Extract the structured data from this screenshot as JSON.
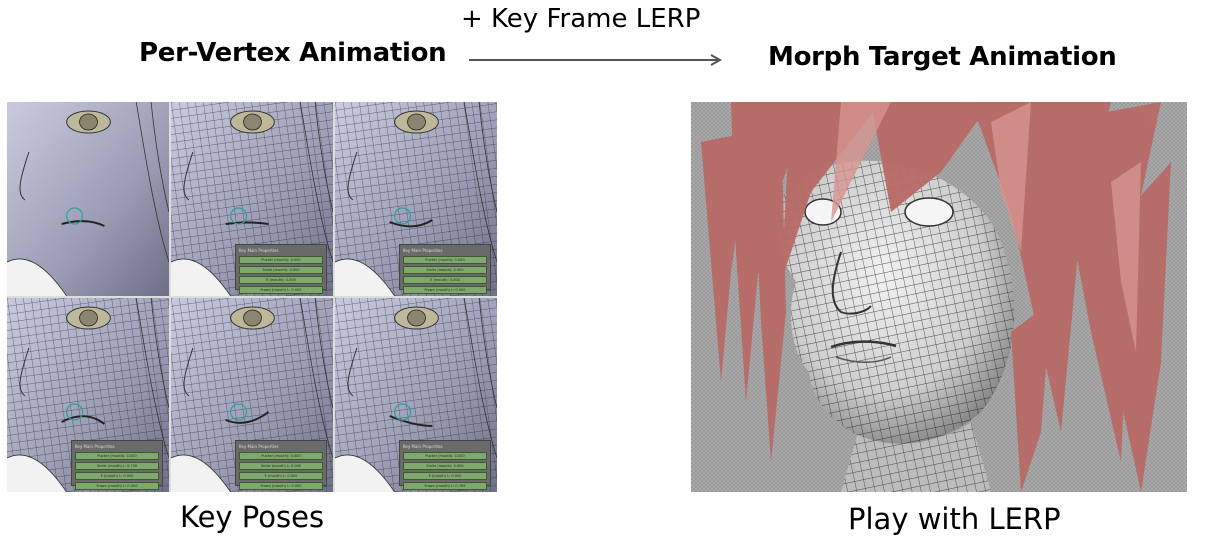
{
  "diagram": {
    "left_title": "Per-Vertex Animation",
    "right_title": "Morph Target Animation",
    "arrow_label": "+ Key Frame LERP",
    "left_caption": "Key Poses",
    "right_caption": "Play with LERP"
  },
  "poses": [
    {
      "panel": null
    },
    {
      "panel": {
        "title": "Key Main Properties",
        "sliders": [
          "Pucker (mouth): 0.000",
          "Smile (mouth): 0.000",
          "E (mouth): 0.000",
          "Frown (mouth) L: 0.000"
        ]
      }
    },
    {
      "panel": {
        "title": "Key Main Properties",
        "sliders": [
          "Pucker (mouth): 0.000",
          "Smile (mouth): 0.000",
          "E (mouth): 0.000",
          "Frown (mouth) L: 0.000"
        ]
      }
    },
    {
      "panel": {
        "title": "Key Main Properties",
        "sliders": [
          "Pucker (mouth): 0.000",
          "Smile (mouth) L: 0.726",
          "E (mouth) L: 0.000",
          "Frown (mouth) L: 0.000"
        ]
      }
    },
    {
      "panel": {
        "title": "Key Main Properties",
        "sliders": [
          "Pucker (mouth): 0.000",
          "Smile (mouth) L: 0.000",
          "E (mouth) L: 0.000",
          "Frown (mouth) L: 0.000"
        ]
      }
    },
    {
      "panel": {
        "title": "Key Main Properties",
        "sliders": [
          "Pucker (mouth): 0.000",
          "Smile (mouth): 0.000",
          "E (mouth) L: 0.000",
          "Frown (mouth) L: 0.789"
        ]
      }
    }
  ],
  "colors": {
    "text": "#000000",
    "arrow": "#555555",
    "skin": "#9fa1b7",
    "wire": "#1e1e28",
    "slider": "#7fa86d",
    "panel": "#6a6a6a",
    "hair": "#b86a66",
    "morph_bg": "#a5a5a5"
  }
}
